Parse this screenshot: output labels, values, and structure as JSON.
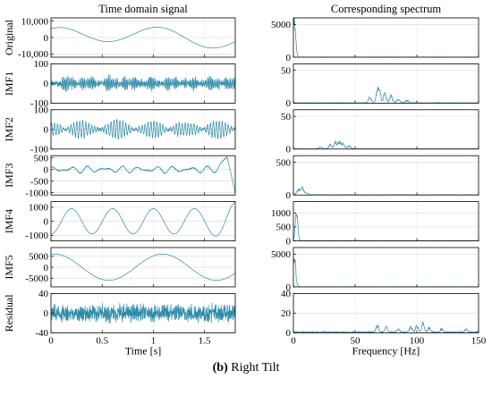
{
  "caption": {
    "letter": "(b)",
    "text": " Right Tilt"
  },
  "chart_data": {
    "type": "line",
    "columns": [
      {
        "title": "Time domain signal",
        "xlabel": "Time [s]",
        "xlim": [
          0,
          1.8
        ],
        "xticks": [
          0,
          0.5,
          1,
          1.5
        ],
        "xtick_labels": [
          "0",
          "0.5",
          "1",
          "1.5"
        ]
      },
      {
        "title": "Corresponding spectrum",
        "xlabel": "Frequency [Hz]",
        "xlim": [
          0,
          150
        ],
        "xticks": [
          0,
          50,
          100,
          150
        ],
        "xtick_labels": [
          "0",
          "50",
          "100",
          "150"
        ]
      }
    ],
    "rows": [
      {
        "name": "Original",
        "time": {
          "ylim": [
            -12000,
            12000
          ],
          "yticks": [
            10000,
            0,
            -10000
          ],
          "ytick_labels": [
            "10,000",
            "0",
            "-10,000"
          ],
          "components": [
            {
              "freq_hz": 1.0,
              "amp": 5000,
              "phase": 1.2
            },
            {
              "freq_hz": 0.35,
              "amp": 2500,
              "phase": 0.3
            }
          ],
          "noise_amp": 0
        },
        "spectrum": {
          "ylim": [
            0,
            6000
          ],
          "yticks": [
            5000,
            0
          ],
          "ytick_labels": [
            "5000",
            "0"
          ],
          "peaks": [
            {
              "freq": 0.6,
              "value": 5300,
              "width": 1.2
            }
          ],
          "floor": 20
        }
      },
      {
        "name": "IMF1",
        "time": {
          "ylim": [
            -100,
            100
          ],
          "yticks": [
            100,
            0,
            -100
          ],
          "ytick_labels": [
            "100",
            "0",
            "-100"
          ],
          "components": [
            {
              "freq_hz": 68,
              "amp": 18,
              "phase": 0
            },
            {
              "freq_hz": 73,
              "amp": 14,
              "phase": 1.1
            },
            {
              "freq_hz": 80,
              "amp": 10,
              "phase": 2.0
            }
          ],
          "noise_amp": 12
        },
        "spectrum": {
          "ylim": [
            0,
            60
          ],
          "yticks": [
            50,
            0
          ],
          "ytick_labels": [
            "50",
            "0"
          ],
          "peaks": [
            {
              "freq": 62,
              "value": 8,
              "width": 1.2
            },
            {
              "freq": 68,
              "value": 18,
              "width": 1.0
            },
            {
              "freq": 70,
              "value": 20,
              "width": 0.8
            },
            {
              "freq": 74,
              "value": 14,
              "width": 1.0
            },
            {
              "freq": 79,
              "value": 10,
              "width": 1.2
            },
            {
              "freq": 85,
              "value": 5,
              "width": 1.4
            },
            {
              "freq": 92,
              "value": 3,
              "width": 1.4
            }
          ],
          "floor": 0.5
        }
      },
      {
        "name": "IMF2",
        "time": {
          "ylim": [
            -100,
            100
          ],
          "yticks": [
            100,
            0,
            -100
          ],
          "ytick_labels": [
            "100",
            "0",
            "-100"
          ],
          "components": [
            {
              "freq_hz": 33,
              "amp": 25,
              "phase": 0
            },
            {
              "freq_hz": 36,
              "amp": 25,
              "phase": 0.4
            }
          ],
          "noise_amp": 6
        },
        "spectrum": {
          "ylim": [
            0,
            60
          ],
          "yticks": [
            50,
            0
          ],
          "ytick_labels": [
            "50",
            "0"
          ],
          "peaks": [
            {
              "freq": 22,
              "value": 3,
              "width": 1.2
            },
            {
              "freq": 30,
              "value": 6,
              "width": 1.2
            },
            {
              "freq": 34,
              "value": 10,
              "width": 1.0
            },
            {
              "freq": 37,
              "value": 11,
              "width": 1.0
            },
            {
              "freq": 40,
              "value": 8,
              "width": 1.2
            },
            {
              "freq": 45,
              "value": 4,
              "width": 1.4
            }
          ],
          "floor": 0.3
        }
      },
      {
        "name": "IMF3",
        "time": {
          "ylim": [
            -1100,
            600
          ],
          "yticks": [
            500,
            0,
            -500,
            -1000
          ],
          "ytick_labels": [
            "500",
            "0",
            "-500",
            "-1000"
          ],
          "components": [
            {
              "freq_hz": 6,
              "amp": 90,
              "phase": 0.5
            },
            {
              "freq_hz": 8.5,
              "amp": 60,
              "phase": 1.7
            }
          ],
          "noise_amp": 15,
          "end_event": {
            "start": 1.62,
            "peak": 1.72,
            "peak_value": 550,
            "end_value": -1000
          }
        },
        "spectrum": {
          "ylim": [
            0,
            600
          ],
          "yticks": [
            500,
            0
          ],
          "ytick_labels": [
            "500",
            "0"
          ],
          "peaks": [
            {
              "freq": 4,
              "value": 70,
              "width": 1.5
            },
            {
              "freq": 7,
              "value": 100,
              "width": 1.0
            },
            {
              "freq": 10,
              "value": 35,
              "width": 1.5
            }
          ],
          "floor": 3
        }
      },
      {
        "name": "IMF4",
        "time": {
          "ylim": [
            -1400,
            1400
          ],
          "yticks": [
            1000,
            0,
            -1000
          ],
          "ytick_labels": [
            "1000",
            "0",
            "-1000"
          ],
          "components": [
            {
              "freq_hz": 2.5,
              "amp": 900,
              "phase": -1.6
            }
          ],
          "noise_amp": 0,
          "amp_ramp": {
            "start": 1.5,
            "factor": 1.5
          }
        },
        "spectrum": {
          "ylim": [
            0,
            1400
          ],
          "yticks": [
            1000,
            500,
            0
          ],
          "ytick_labels": [
            "1000",
            "500",
            "0"
          ],
          "peaks": [
            {
              "freq": 2.5,
              "value": 950,
              "width": 1.0
            }
          ],
          "floor": 5
        }
      },
      {
        "name": "IMF5",
        "time": {
          "ylim": [
            -9000,
            9000
          ],
          "yticks": [
            5000,
            0,
            -5000
          ],
          "ytick_labels": [
            "5000",
            "0",
            "-5000"
          ],
          "components": [
            {
              "freq_hz": 0.95,
              "amp": 6000,
              "phase": 1.35
            }
          ],
          "noise_amp": 0
        },
        "spectrum": {
          "ylim": [
            0,
            6000
          ],
          "yticks": [
            5000,
            0
          ],
          "ytick_labels": [
            "5000",
            "0"
          ],
          "peaks": [
            {
              "freq": 0.5,
              "value": 4800,
              "width": 1.2
            }
          ],
          "floor": 20
        }
      },
      {
        "name": "Residual",
        "time": {
          "ylim": [
            -40,
            40
          ],
          "yticks": [
            40,
            0,
            -40
          ],
          "ytick_labels": [
            "40",
            "0",
            "-40"
          ],
          "components": [
            {
              "freq_hz": 100,
              "amp": 6,
              "phase": 0
            },
            {
              "freq_hz": 70,
              "amp": 4,
              "phase": 1
            }
          ],
          "noise_amp": 14
        },
        "spectrum": {
          "ylim": [
            0,
            40
          ],
          "yticks": [
            40,
            20,
            0
          ],
          "ytick_labels": [
            "40",
            "20",
            "0"
          ],
          "peaks": [
            {
              "freq": 68,
              "value": 7,
              "width": 1.0
            },
            {
              "freq": 75,
              "value": 5,
              "width": 1.0
            },
            {
              "freq": 85,
              "value": 3,
              "width": 1.0
            },
            {
              "freq": 95,
              "value": 5,
              "width": 1.0
            },
            {
              "freq": 100,
              "value": 6,
              "width": 1.0
            },
            {
              "freq": 105,
              "value": 9,
              "width": 1.0
            },
            {
              "freq": 110,
              "value": 4,
              "width": 1.0
            },
            {
              "freq": 120,
              "value": 3,
              "width": 1.0
            },
            {
              "freq": 140,
              "value": 3,
              "width": 1.0
            }
          ],
          "floor": 0.8
        }
      }
    ],
    "line_color": "#2d8aa8",
    "grid_color": "#d6d6d6",
    "grid": true,
    "legend": "none"
  }
}
